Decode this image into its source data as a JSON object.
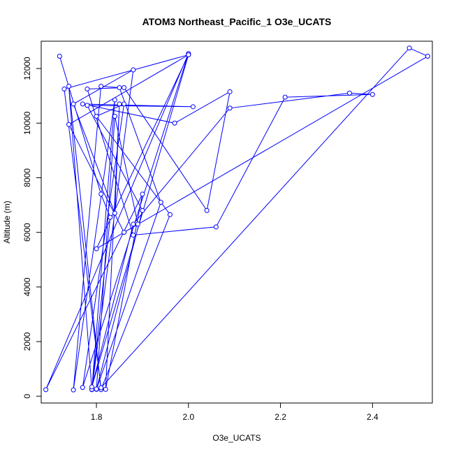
{
  "chart_data": {
    "type": "scatter",
    "title": "ATOM3 Northeast_Pacific_1 O3e_UCATS",
    "xlabel": "O3e_UCATS",
    "ylabel": "Altitude (m)",
    "xlim": [
      1.68,
      2.53
    ],
    "ylim": [
      -250,
      13000
    ],
    "x_ticks": [
      1.8,
      2.0,
      2.2,
      2.4
    ],
    "x_tick_labels": [
      "1.8",
      "2.0",
      "2.2",
      "2.4"
    ],
    "y_ticks": [
      0,
      2000,
      4000,
      6000,
      8000,
      10000,
      12000
    ],
    "y_tick_labels": [
      "0",
      "2000",
      "4000",
      "6000",
      "8000",
      "10000",
      "12000"
    ],
    "color": "#0000ff",
    "markers": "open-circle",
    "lines_connect_points": true,
    "series": [
      {
        "x": [
          1.72,
          1.81,
          1.83,
          1.79,
          1.88,
          1.75,
          1.84,
          1.85,
          1.82,
          1.9,
          1.69,
          2.0,
          1.77,
          1.86,
          1.8,
          1.96,
          1.81,
          1.74,
          1.79,
          1.84,
          1.75,
          1.81,
          1.85,
          1.94,
          1.8,
          1.9,
          1.78,
          2.01,
          1.77,
          1.97,
          2.09,
          2.04,
          1.86,
          1.78,
          1.88,
          2.06,
          2.21,
          2.4,
          2.35,
          2.09,
          1.88,
          1.79,
          2.0,
          1.74,
          1.86,
          2.52,
          2.48,
          1.81,
          1.73,
          2.0,
          1.8,
          1.89,
          1.84,
          1.8
        ],
        "y": [
          12450,
          7400,
          6550,
          240,
          11950,
          10700,
          6700,
          10700,
          250,
          7400,
          240,
          12550,
          320,
          10700,
          10250,
          6650,
          240,
          11350,
          250,
          10850,
          230,
          11350,
          11300,
          7100,
          250,
          6800,
          10650,
          10600,
          10700,
          10000,
          11150,
          6800,
          11300,
          11250,
          5900,
          6200,
          10950,
          11050,
          11100,
          10550,
          6300,
          340,
          12500,
          9950,
          6000,
          12450,
          12750,
          310,
          11250,
          12500,
          5400,
          6300,
          10250,
          260
        ]
      }
    ]
  }
}
